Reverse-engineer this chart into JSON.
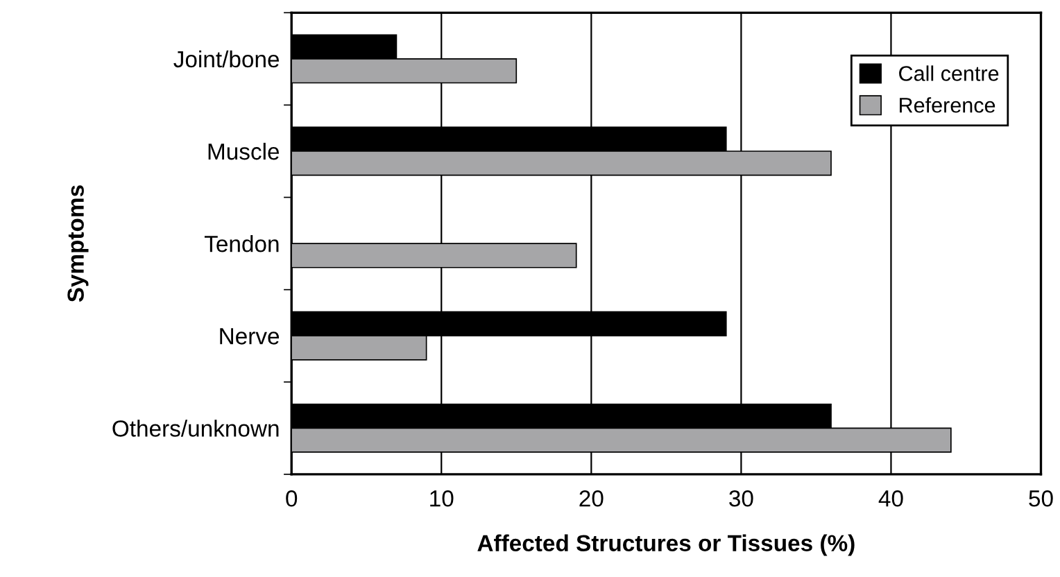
{
  "chart_data": {
    "type": "bar",
    "orientation": "horizontal",
    "xlabel": "Affected Structures or Tissues (%)",
    "ylabel": "Symptoms",
    "categories": [
      "Joint/bone",
      "Muscle",
      "Tendon",
      "Nerve",
      "Others/unknown"
    ],
    "series": [
      {
        "name": "Call centre",
        "color": "#000000",
        "values": [
          7,
          29,
          0,
          29,
          36
        ]
      },
      {
        "name": "Reference",
        "color": "#a6a6a8",
        "values": [
          15,
          36,
          19,
          9,
          44
        ]
      }
    ],
    "xlim": [
      0,
      50
    ],
    "xticks": [
      0,
      10,
      20,
      30,
      40,
      50
    ],
    "grid": "x",
    "legend": "top right"
  }
}
